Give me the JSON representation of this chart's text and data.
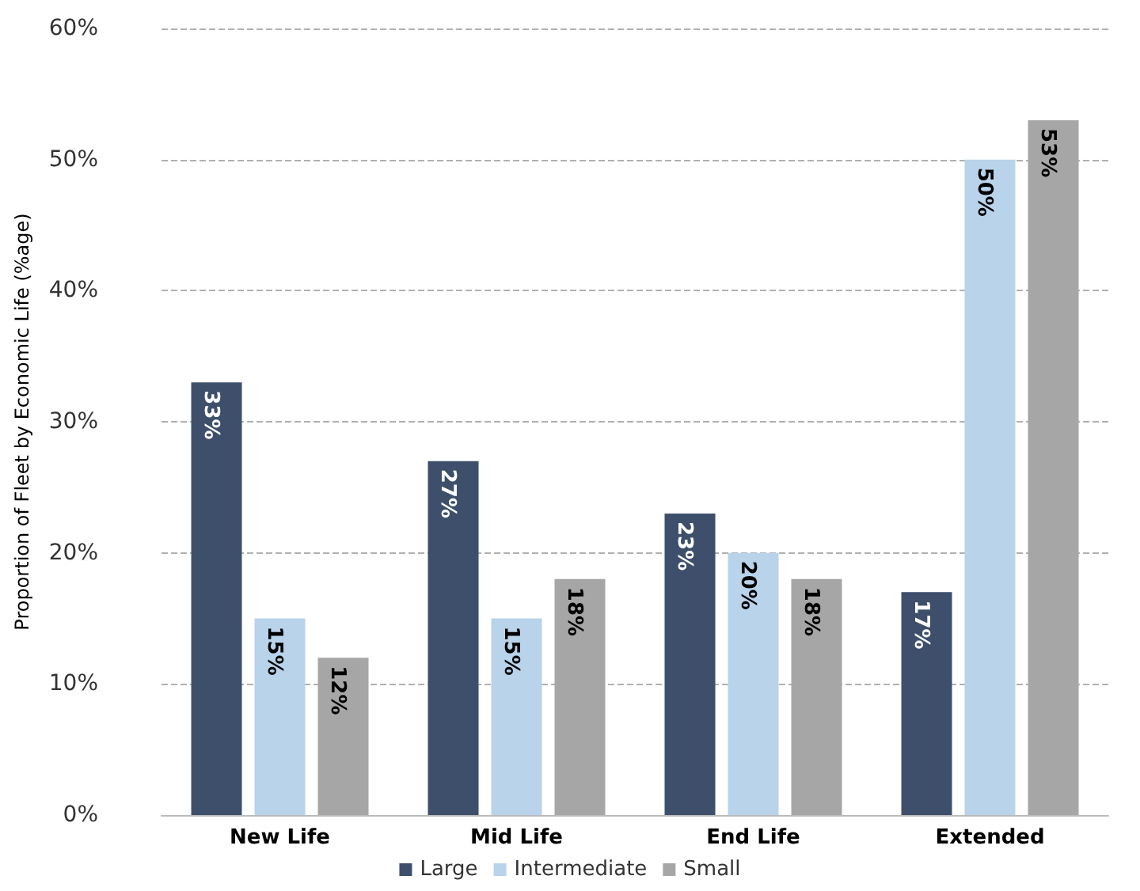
{
  "chart_data": {
    "type": "bar",
    "ylabel": "Proportion of Fleet by Economic Life (%age)",
    "categories": [
      "New Life",
      "Mid Life",
      "End Life",
      "Extended"
    ],
    "series": [
      {
        "name": "Large",
        "color": "#3d4f6b",
        "values": [
          33,
          27,
          23,
          17
        ],
        "value_labels": [
          "33%",
          "27%",
          "23%",
          "17%"
        ]
      },
      {
        "name": "Intermediate",
        "color": "#b8d3ea",
        "values": [
          15,
          15,
          20,
          50
        ],
        "value_labels": [
          "15%",
          "15%",
          "20%",
          "50%"
        ]
      },
      {
        "name": "Small",
        "color": "#a6a6a6",
        "values": [
          12,
          18,
          18,
          53
        ],
        "value_labels": [
          "12%",
          "18%",
          "18%",
          "53%"
        ]
      }
    ],
    "ylim": [
      0,
      60
    ],
    "yticks": [
      {
        "value": 0,
        "label": "0%"
      },
      {
        "value": 10,
        "label": "10%"
      },
      {
        "value": 20,
        "label": "20%"
      },
      {
        "value": 30,
        "label": "30%"
      },
      {
        "value": 40,
        "label": "40%"
      },
      {
        "value": 50,
        "label": "50%"
      },
      {
        "value": 60,
        "label": "60%"
      }
    ],
    "grid": "y",
    "legend": "bottom"
  }
}
